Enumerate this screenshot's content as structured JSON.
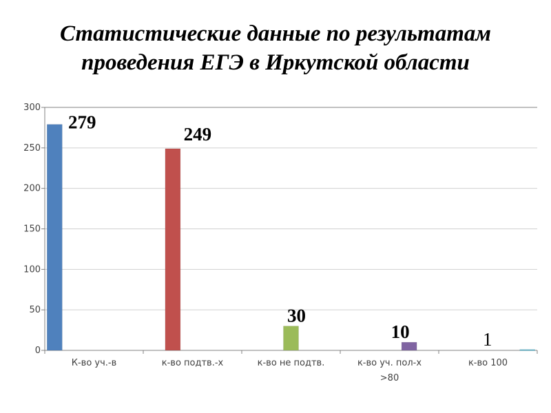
{
  "title": {
    "line1": "Статистические данные по результатам",
    "line2": "проведения ЕГЭ в Иркутской области"
  },
  "colors": {
    "blue": "#4f81bd",
    "red": "#c0504d",
    "green": "#9bbb59",
    "purple": "#8064a2",
    "teal": "#4bacc6",
    "grid": "#d0d0d0",
    "axis": "#808080"
  },
  "chart_data": {
    "type": "bar",
    "title": "Статистические данные по результатам проведения ЕГЭ в Иркутской области",
    "categories": [
      "К-во уч.-в",
      "к-во подтв.-х",
      "к-во не подтв.",
      "к-во уч. пол-х >80",
      "к-во 100"
    ],
    "category_lines": [
      [
        "К-во уч.-в"
      ],
      [
        "к-во подтв.-х"
      ],
      [
        "к-во не подтв."
      ],
      [
        "к-во уч. пол-х",
        ">80"
      ],
      [
        "к-во 100"
      ]
    ],
    "values": [
      279,
      249,
      30,
      10,
      1
    ],
    "data_labels": [
      "279",
      "249",
      "30",
      "10",
      "1"
    ],
    "bar_colors": [
      "#4f81bd",
      "#c0504d",
      "#9bbb59",
      "#8064a2",
      "#4bacc6"
    ],
    "bar_slot": [
      0,
      1,
      2,
      3,
      4
    ],
    "xlabel": "",
    "ylabel": "",
    "ylim": [
      0,
      300
    ],
    "yticks": [
      0,
      50,
      100,
      150,
      200,
      250,
      300
    ],
    "grid": true,
    "legend": "none"
  }
}
